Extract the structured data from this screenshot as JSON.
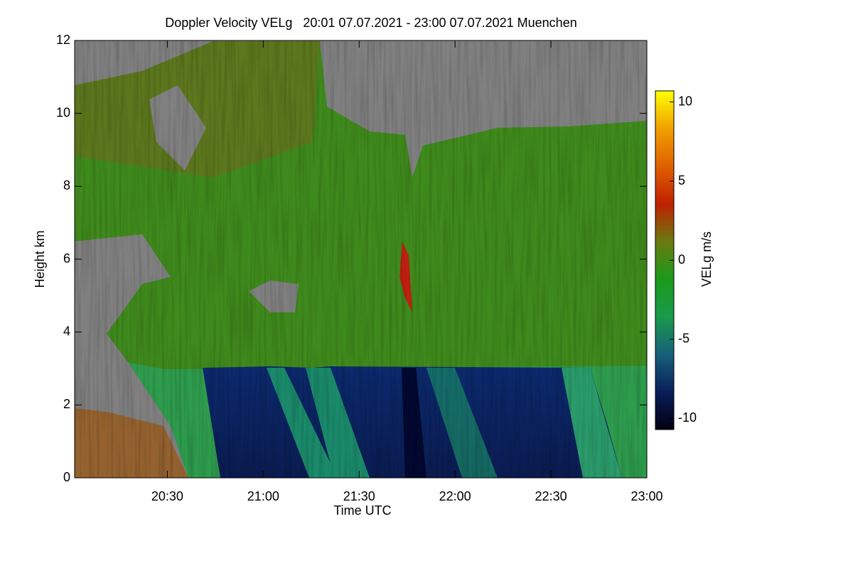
{
  "chart_data": {
    "type": "heatmap",
    "title": "Doppler Velocity VELg   20:01 07.07.2021 - 23:00 07.07.2021 Muenchen",
    "xlabel": "Time UTC",
    "ylabel": "Height km",
    "colorbar_label": "VELg m/s",
    "xlim": [
      "20:01",
      "23:00"
    ],
    "xticks": [
      "20:30",
      "21:00",
      "21:30",
      "22:00",
      "22:30",
      "23:00"
    ],
    "ylim": [
      0,
      12
    ],
    "yticks": [
      0,
      2,
      4,
      6,
      8,
      10,
      12
    ],
    "clim": [
      -10.7,
      10.7
    ],
    "cticks": [
      -10,
      -5,
      0,
      5,
      10
    ],
    "colormap": [
      "#000010",
      "#0a1e5a",
      "#16607a",
      "#1a9a4a",
      "#1a9a1a",
      "#6a7a10",
      "#c02000",
      "#e06000",
      "#f0a000",
      "#ffff00"
    ]
  }
}
